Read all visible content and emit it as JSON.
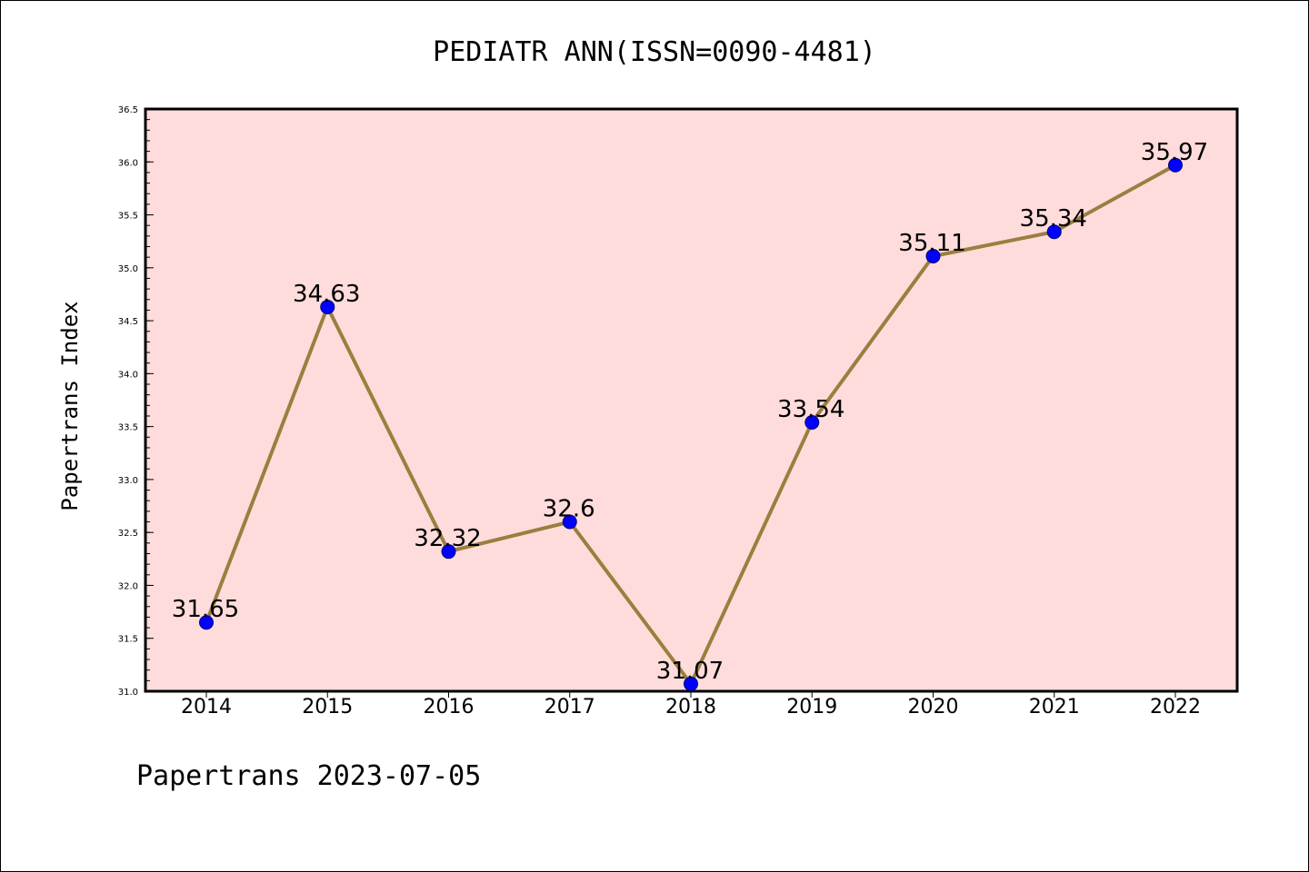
{
  "chart_data": {
    "type": "line",
    "title": "PEDIATR ANN(ISSN=0090-4481)",
    "xlabel": "",
    "ylabel": "Papertrans Index",
    "categories": [
      "2014",
      "2015",
      "2016",
      "2017",
      "2018",
      "2019",
      "2020",
      "2021",
      "2022"
    ],
    "values": [
      31.65,
      34.63,
      32.32,
      32.6,
      31.07,
      33.54,
      35.11,
      35.34,
      35.97
    ],
    "data_labels": [
      "31.65",
      "34.63",
      "32.32",
      "32.6",
      "31.07",
      "33.54",
      "35.11",
      "35.34",
      "35.97"
    ],
    "ylim": [
      31.0,
      36.5
    ],
    "yticks": [
      "31.0",
      "31.5",
      "32.0",
      "32.5",
      "33.0",
      "33.5",
      "34.0",
      "34.5",
      "35.0",
      "35.5",
      "36.0",
      "36.5"
    ],
    "grid": false,
    "colors": {
      "plot_background": "#ffdcdc",
      "line": "#9a7f3e",
      "marker": "#0000ff"
    }
  },
  "footer": "Papertrans 2023-07-05"
}
